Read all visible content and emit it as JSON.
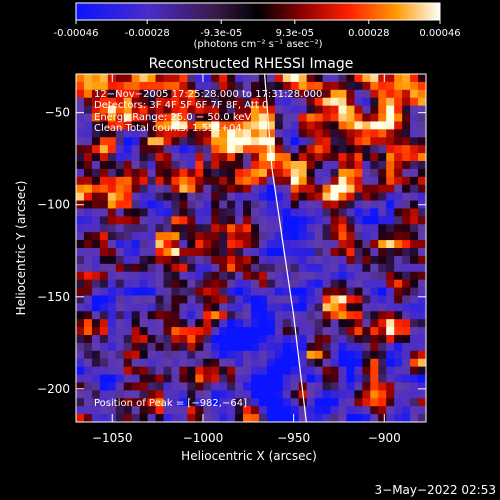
{
  "colorbar": {
    "tick_labels": [
      "-0.00046",
      "-0.00028",
      "-9.3e-05",
      "9.3e-05",
      "0.00028",
      "0.00046"
    ],
    "tick_values": [
      -0.00046,
      -0.00028,
      -9.3e-05,
      9.3e-05,
      0.00028,
      0.00046
    ],
    "range": [
      -0.00046,
      0.00046
    ],
    "units_label": "(photons cm⁻² s⁻¹ asec⁻²)"
  },
  "chart_data": {
    "type": "heatmap",
    "title": "Reconstructed RHESSI Image",
    "xlabel": "Heliocentric X (arcsec)",
    "ylabel": "Heliocentric Y (arcsec)",
    "xlim": [
      -1070,
      -877
    ],
    "ylim": [
      -218,
      -29
    ],
    "xticks": [
      -1050,
      -1000,
      -950,
      -900
    ],
    "yticks": [
      -50,
      -100,
      -150,
      -200
    ],
    "xtick_labels": [
      "−1050",
      "−1000",
      "−950",
      "−900"
    ],
    "ytick_labels": [
      "−50",
      "−100",
      "−150",
      "−200"
    ],
    "annotations": [
      "12−Nov−2005 17:25:28.000 to 17:31:28.000",
      "Detectors: 3F 4F 5F 6F 7F 8F, Att 0",
      "Energy Range: 25.0 − 50.0 keV",
      "Clean      Total counts: 1.55E+04"
    ],
    "peak_label": "Position of Peak = [−982,−64]",
    "peak": [
      -982,
      -64
    ],
    "limb_curve": [
      [
        -966,
        -29
      ],
      [
        -962,
        -80
      ],
      [
        -956,
        -120
      ],
      [
        -950,
        -160
      ],
      [
        -943,
        -218
      ]
    ],
    "grid": false
  },
  "timestamp": "3−May−2022 02:53"
}
